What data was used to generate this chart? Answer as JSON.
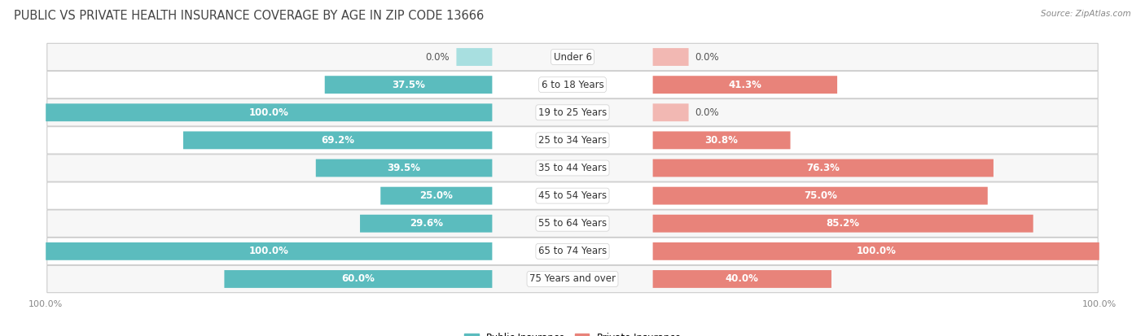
{
  "title": "PUBLIC VS PRIVATE HEALTH INSURANCE COVERAGE BY AGE IN ZIP CODE 13666",
  "source": "Source: ZipAtlas.com",
  "categories": [
    "Under 6",
    "6 to 18 Years",
    "19 to 25 Years",
    "25 to 34 Years",
    "35 to 44 Years",
    "45 to 54 Years",
    "55 to 64 Years",
    "65 to 74 Years",
    "75 Years and over"
  ],
  "public_values": [
    0.0,
    37.5,
    100.0,
    69.2,
    39.5,
    25.0,
    29.6,
    100.0,
    60.0
  ],
  "private_values": [
    0.0,
    41.3,
    0.0,
    30.8,
    76.3,
    75.0,
    85.2,
    100.0,
    40.0
  ],
  "public_color": "#5bbcbe",
  "private_color": "#e8837a",
  "public_zero_color": "#a8dfe0",
  "private_zero_color": "#f2b8b3",
  "row_bg_color_odd": "#f7f7f7",
  "row_bg_color_even": "#ffffff",
  "row_border_color": "#dddddd",
  "title_fontsize": 10.5,
  "label_fontsize": 8.5,
  "cat_fontsize": 8.5,
  "tick_fontsize": 8,
  "max_value": 100.0,
  "zero_stub": 8.0,
  "figsize": [
    14.06,
    4.13
  ],
  "dpi": 100
}
